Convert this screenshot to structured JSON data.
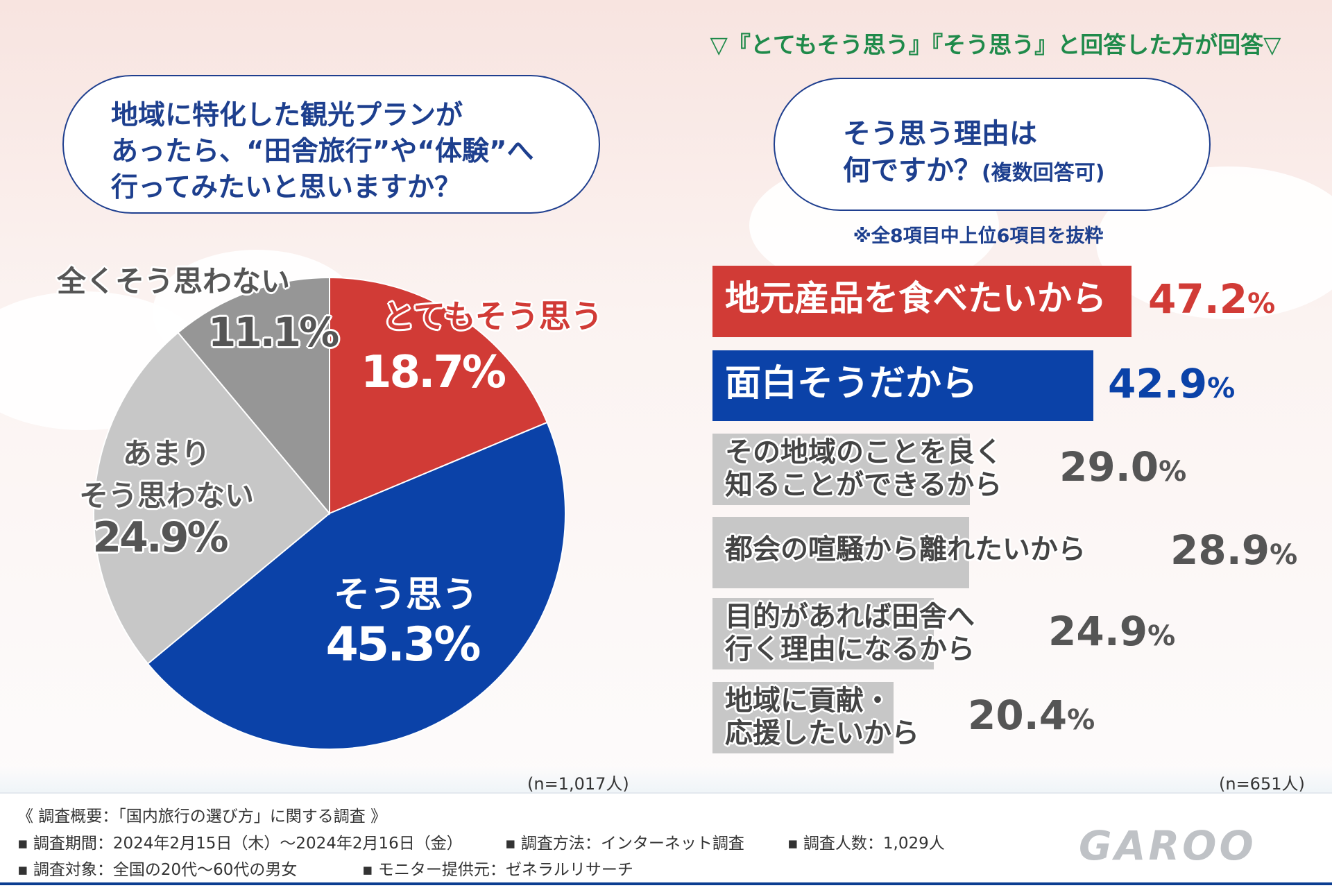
{
  "header": {
    "top_note": "▽『とてもそう思う』『そう思う』と回答した方が回答▽"
  },
  "left_question": {
    "line1": "地域に特化した観光プランが",
    "line2": "あったら、“田舎旅行”や“体験”へ",
    "line3": "行ってみたいと思いますか？"
  },
  "right_question": {
    "line1": "そう思う理由は",
    "line2_main": "何ですか？",
    "line2_sub": "(複数回答可)",
    "note": "※全8項目中上位6項目を抜粋"
  },
  "colors": {
    "red": "#d13b36",
    "blue": "#0b42a8",
    "gray_dark": "#969696",
    "gray_light": "#c7c7c7",
    "heading_blue": "#1d3f8e",
    "green": "#1f8a4a"
  },
  "chart_data": [
    {
      "type": "pie",
      "title": "地域に特化した観光プランがあったら、“田舎旅行”や“体験”へ行ってみたいと思いますか？",
      "start_angle": "12 o'clock, clockwise",
      "slices": [
        {
          "label": "とてもそう思う",
          "value": 18.7,
          "value_text": "18.7%",
          "color": "#d13b36"
        },
        {
          "label": "そう思う",
          "value": 45.3,
          "value_text": "45.3%",
          "color": "#0b42a8"
        },
        {
          "label": "あまり\nそう思わない",
          "label_l1": "あまり",
          "label_l2": "そう思わない",
          "value": 24.9,
          "value_text": "24.9%",
          "color": "#c7c7c7"
        },
        {
          "label": "全くそう思わない",
          "value": 11.1,
          "value_text": "11.1%",
          "color": "#969696"
        }
      ],
      "n_note": "(n=1,017人)"
    },
    {
      "type": "bar",
      "orientation": "horizontal",
      "title": "そう思う理由は何ですか？(複数回答可)",
      "xlim": [
        0,
        60
      ],
      "categories": [
        "地元産品を食べたいから",
        "面白そうだから",
        "その地域のことを良く知ることができるから",
        "都会の喧騒から離れたいから",
        "目的があれば田舎へ行く理由になるから",
        "地域に貢献・応援したいから"
      ],
      "bars": [
        {
          "l1": "地元産品を食べたいから",
          "l2": "",
          "value": 47.2,
          "num": "47.2",
          "color": "#d13b36"
        },
        {
          "l1": "面白そうだから",
          "l2": "",
          "value": 42.9,
          "num": "42.9",
          "color": "#0b42a8"
        },
        {
          "l1": "その地域のことを良く",
          "l2": "知ることができるから",
          "value": 29.0,
          "num": "29.0",
          "color": "#c7c7c7"
        },
        {
          "l1": "都会の喧騒から離れたいから",
          "l2": "",
          "value": 28.9,
          "num": "28.9",
          "color": "#c7c7c7"
        },
        {
          "l1": "目的があれば田舎へ",
          "l2": "行く理由になるから",
          "value": 24.9,
          "num": "24.9",
          "color": "#c7c7c7"
        },
        {
          "l1": "地域に貢献・",
          "l2": "応援したいから",
          "value": 20.4,
          "num": "20.4",
          "color": "#c7c7c7"
        }
      ],
      "unit": "%",
      "n_note": "(n=651人)"
    }
  ],
  "footer": {
    "line1": "《 調査概要：「国内旅行の選び方」に関する調査 》",
    "period": "▪ 調査期間：2024年2月15日（木）～2024年2月16日（金）",
    "method": "▪ 調査方法：インターネット調査",
    "count": "▪ 調査人数：1,029人",
    "target": "▪ 調査対象：全国の20代～60代の男女",
    "provider": "▪ モニター提供元：ゼネラルリサーチ",
    "logo": "GAROO"
  }
}
